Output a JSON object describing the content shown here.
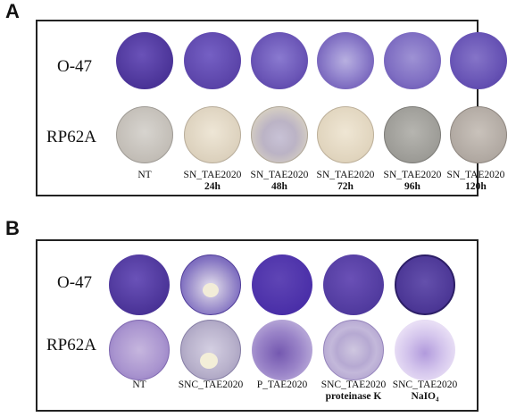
{
  "panel_a": {
    "letter": "A",
    "rows": [
      "O-47",
      "RP62A"
    ],
    "columns": [
      {
        "line1": "NT",
        "line2": ""
      },
      {
        "line1": "SN_TAE2020",
        "line2": "24h"
      },
      {
        "line1": "SN_TAE2020",
        "line2": "48h"
      },
      {
        "line1": "SN_TAE2020",
        "line2": "72h"
      },
      {
        "line1": "SN_TAE2020",
        "line2": "96h"
      },
      {
        "line1": "SN_TAE2020",
        "line2": "120h"
      }
    ]
  },
  "panel_b": {
    "letter": "B",
    "rows": [
      "O-47",
      "RP62A"
    ],
    "columns": [
      {
        "line1": "NT",
        "line2": ""
      },
      {
        "line1": "SNC_TAE2020",
        "line2": ""
      },
      {
        "line1": "P_TAE2020",
        "line2": ""
      },
      {
        "line1": "SNC_TAE2020",
        "line2": "proteinase K"
      },
      {
        "line1": "SNC_TAE2020",
        "line2": "NaIO₄"
      }
    ]
  },
  "colors": {
    "o47_dark": "#4b2f9c",
    "o47_light": "#8a78c8",
    "rp62a_pale": "#d9d2c4",
    "rp62a_violet": "#9a80c4"
  }
}
